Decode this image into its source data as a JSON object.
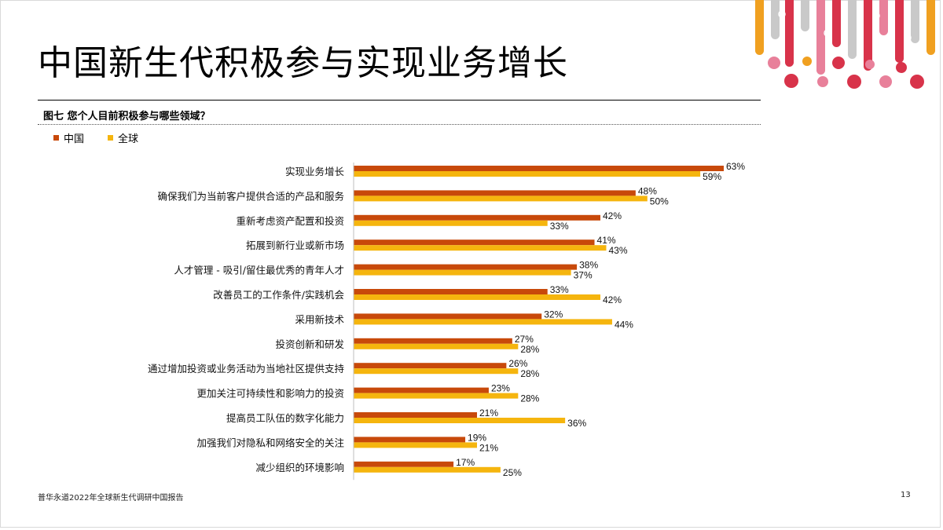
{
  "page": {
    "title": "中国新生代积极参与实现业务增长",
    "figure_caption": "图七 您个人目前积极参与哪些领域？",
    "footer": "普华永道2022年全球新生代调研中国报告",
    "page_number": "13"
  },
  "colors": {
    "china": "#c8490a",
    "global": "#f5b50e",
    "deco_red": "#d8334a",
    "deco_pink": "#e8809a",
    "deco_gray": "#c9c9c9",
    "deco_orange": "#f0a020"
  },
  "chart_data": {
    "type": "bar",
    "orientation": "horizontal",
    "legend_position": "top-left",
    "grid": false,
    "xlim": [
      0,
      63
    ],
    "categories": [
      "实现业务增长",
      "确保我们为当前客户提供合适的产品和服务",
      "重新考虑资产配置和投资",
      "拓展到新行业或新市场",
      "人才管理 - 吸引/留住最优秀的青年人才",
      "改善员工的工作条件/实践机会",
      "采用新技术",
      "投资创新和研发",
      "通过增加投资或业务活动为当地社区提供支持",
      "更加关注可持续性和影响力的投资",
      "提高员工队伍的数字化能力",
      "加强我们对隐私和网络安全的关注",
      "减少组织的环境影响"
    ],
    "series": [
      {
        "name": "中国",
        "values": [
          63,
          48,
          42,
          41,
          38,
          33,
          32,
          27,
          26,
          23,
          21,
          19,
          17
        ]
      },
      {
        "name": "全球",
        "values": [
          59,
          50,
          33,
          43,
          37,
          42,
          44,
          28,
          28,
          28,
          36,
          21,
          25
        ]
      }
    ],
    "value_suffix": "%"
  }
}
